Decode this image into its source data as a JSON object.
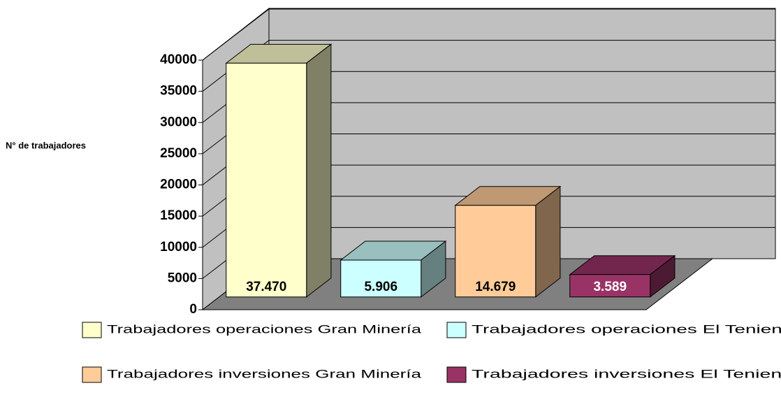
{
  "chart_data": {
    "type": "bar",
    "ylabel": "N° de trabajadores",
    "series": [
      {
        "name": "Trabajadores operaciones Gran Minería",
        "color": "#ffffcc",
        "values": [
          37470
        ],
        "value_labels": [
          "37.470"
        ]
      },
      {
        "name": "Trabajadores operaciones El Teniente",
        "color": "#ccffff",
        "values": [
          5906
        ],
        "value_labels": [
          "5.906"
        ]
      },
      {
        "name": "Trabajadores inversiones Gran Minería",
        "color": "#ffcc99",
        "values": [
          14679
        ],
        "value_labels": [
          "14.679"
        ]
      },
      {
        "name": "Trabajadores inversiones El Teniente",
        "color": "#993366",
        "values": [
          3589
        ],
        "value_labels": [
          "3.589"
        ]
      }
    ],
    "ylim": [
      0,
      40000
    ],
    "yticks": [
      0,
      5000,
      10000,
      15000,
      20000,
      25000,
      30000,
      35000,
      40000
    ],
    "grid": true
  }
}
